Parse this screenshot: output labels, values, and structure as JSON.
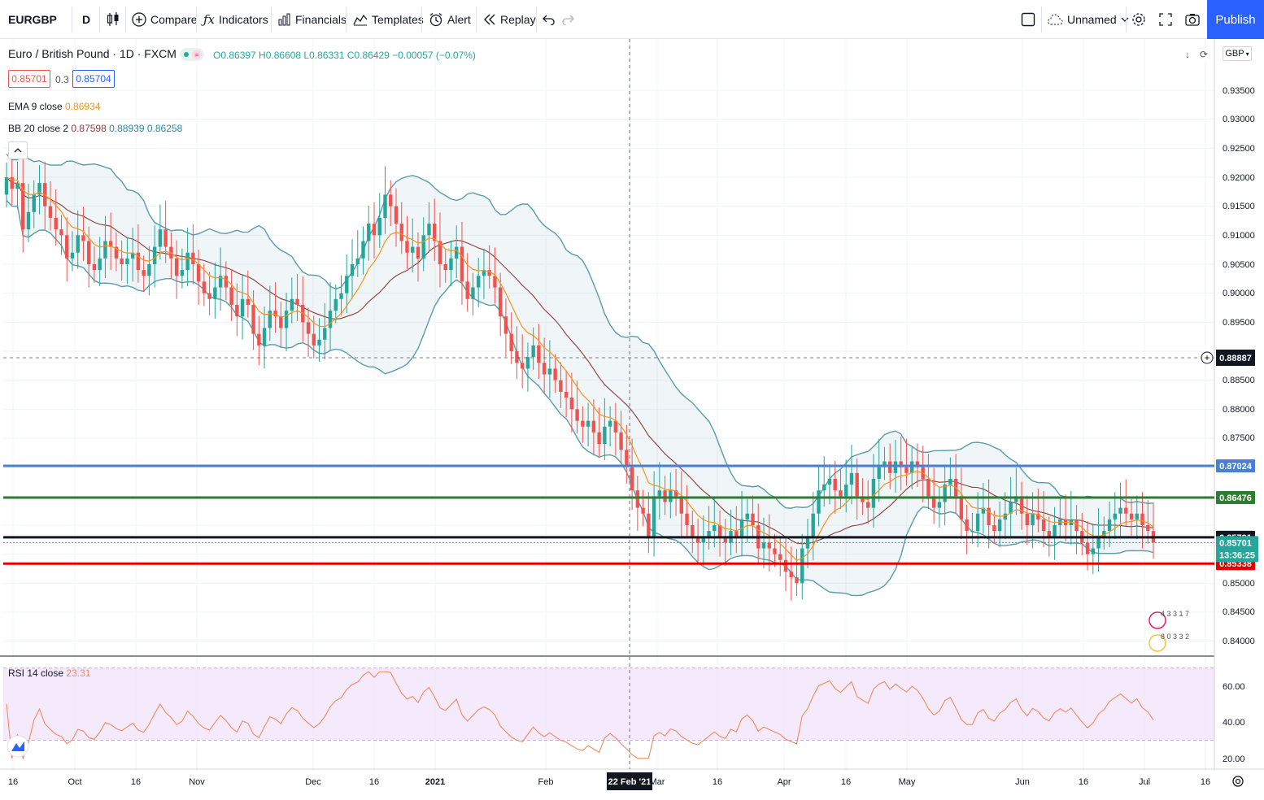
{
  "toolbar": {
    "symbol": "EURGBP",
    "interval": "D",
    "compare": "Compare",
    "indicators": "Indicators",
    "financials": "Financials",
    "templates": "Templates",
    "alert": "Alert",
    "replay": "Replay",
    "layout_name": "Unnamed",
    "publish": "Publish"
  },
  "legend": {
    "title": "Euro / British Pound · 1D · FXCM",
    "ohlc": "O0.86397 H0.86608 L0.86331 C0.86429 −0.00057 (−0.07%)",
    "bid": "0.85701",
    "spread": "0.3",
    "ask": "0.85704",
    "ema_label": "EMA 9 close",
    "ema_value": "0.86934",
    "bb_label": "BB 20 close 2",
    "bb_basis": "0.87598",
    "bb_upper": "0.88939",
    "bb_lower": "0.86258",
    "rsi_label": "RSI 14 close",
    "rsi_value": "23.31",
    "currency": "GBP"
  },
  "colors": {
    "up": "#26a69a",
    "down": "#ef5350",
    "bb": "#5b9ba8",
    "basis": "#8d3b3b",
    "ema": "#f7931a",
    "rsi": "#f08a5d",
    "accent": "#2962ff"
  },
  "price_axis": [
    "0.93500",
    "0.93000",
    "0.92500",
    "0.92000",
    "0.91500",
    "0.91000",
    "0.90500",
    "0.90000",
    "0.89500",
    "0.88500",
    "0.88000",
    "0.87500",
    "0.85000",
    "0.84500",
    "0.84000"
  ],
  "rsi_axis": [
    "60.00",
    "40.00",
    "20.00"
  ],
  "time_axis": [
    "16",
    "Oct",
    "16",
    "Nov",
    "Dec",
    "16",
    "2021",
    "Feb",
    "Mar",
    "16",
    "Apr",
    "16",
    "May",
    "Jun",
    "16",
    "Jul",
    "16"
  ],
  "crosshair": {
    "date": "22 Feb '21",
    "price": "0.88887"
  },
  "levels": [
    {
      "name": "blue-level",
      "price": "0.87024",
      "color": "#4a7fd6"
    },
    {
      "name": "green-level",
      "price": "0.86476",
      "color": "#2e7d32"
    },
    {
      "name": "black-level",
      "price": "0.85791",
      "color": "#131722"
    },
    {
      "name": "red-level",
      "price": "0.85338",
      "color": "#e00000"
    }
  ],
  "last_price": {
    "price": "0.85701",
    "countdown": "13:36:25"
  },
  "events_top": "4 3 3 1 7",
  "events_bottom": "8 0 3 3 2",
  "chart_data": {
    "type": "candlestick",
    "close": [
      0.92,
      0.918,
      0.919,
      0.911,
      0.914,
      0.917,
      0.919,
      0.915,
      0.913,
      0.911,
      0.91,
      0.906,
      0.907,
      0.91,
      0.909,
      0.905,
      0.904,
      0.906,
      0.909,
      0.908,
      0.906,
      0.905,
      0.906,
      0.907,
      0.904,
      0.903,
      0.905,
      0.908,
      0.911,
      0.908,
      0.906,
      0.903,
      0.904,
      0.907,
      0.905,
      0.902,
      0.9,
      0.899,
      0.901,
      0.903,
      0.901,
      0.898,
      0.896,
      0.899,
      0.898,
      0.893,
      0.891,
      0.894,
      0.897,
      0.896,
      0.894,
      0.897,
      0.899,
      0.898,
      0.895,
      0.893,
      0.891,
      0.892,
      0.894,
      0.897,
      0.899,
      0.9,
      0.903,
      0.905,
      0.906,
      0.909,
      0.912,
      0.91,
      0.913,
      0.917,
      0.915,
      0.912,
      0.909,
      0.907,
      0.908,
      0.906,
      0.91,
      0.912,
      0.909,
      0.905,
      0.904,
      0.906,
      0.908,
      0.902,
      0.899,
      0.901,
      0.903,
      0.904,
      0.903,
      0.901,
      0.896,
      0.893,
      0.89,
      0.888,
      0.887,
      0.889,
      0.891,
      0.888,
      0.886,
      0.887,
      0.885,
      0.883,
      0.882,
      0.88,
      0.878,
      0.877,
      0.878,
      0.876,
      0.874,
      0.877,
      0.878,
      0.876,
      0.873,
      0.87,
      0.866,
      0.863,
      0.862,
      0.858,
      0.865,
      0.866,
      0.864,
      0.866,
      0.865,
      0.862,
      0.86,
      0.858,
      0.857,
      0.858,
      0.859,
      0.86,
      0.858,
      0.857,
      0.859,
      0.858,
      0.861,
      0.862,
      0.86,
      0.856,
      0.857,
      0.856,
      0.855,
      0.854,
      0.852,
      0.851,
      0.85,
      0.856,
      0.858,
      0.862,
      0.866,
      0.867,
      0.868,
      0.866,
      0.865,
      0.867,
      0.869,
      0.865,
      0.864,
      0.863,
      0.868,
      0.87,
      0.871,
      0.869,
      0.871,
      0.87,
      0.869,
      0.871,
      0.87,
      0.868,
      0.865,
      0.863,
      0.864,
      0.867,
      0.868,
      0.865,
      0.861,
      0.859,
      0.859,
      0.862,
      0.863,
      0.86,
      0.859,
      0.861,
      0.862,
      0.864,
      0.865,
      0.862,
      0.86,
      0.862,
      0.861,
      0.859,
      0.858,
      0.86,
      0.861,
      0.86,
      0.861,
      0.859,
      0.857,
      0.855,
      0.856,
      0.858,
      0.859,
      0.861,
      0.862,
      0.863,
      0.862,
      0.861,
      0.862,
      0.86,
      0.859,
      0.857
    ]
  }
}
